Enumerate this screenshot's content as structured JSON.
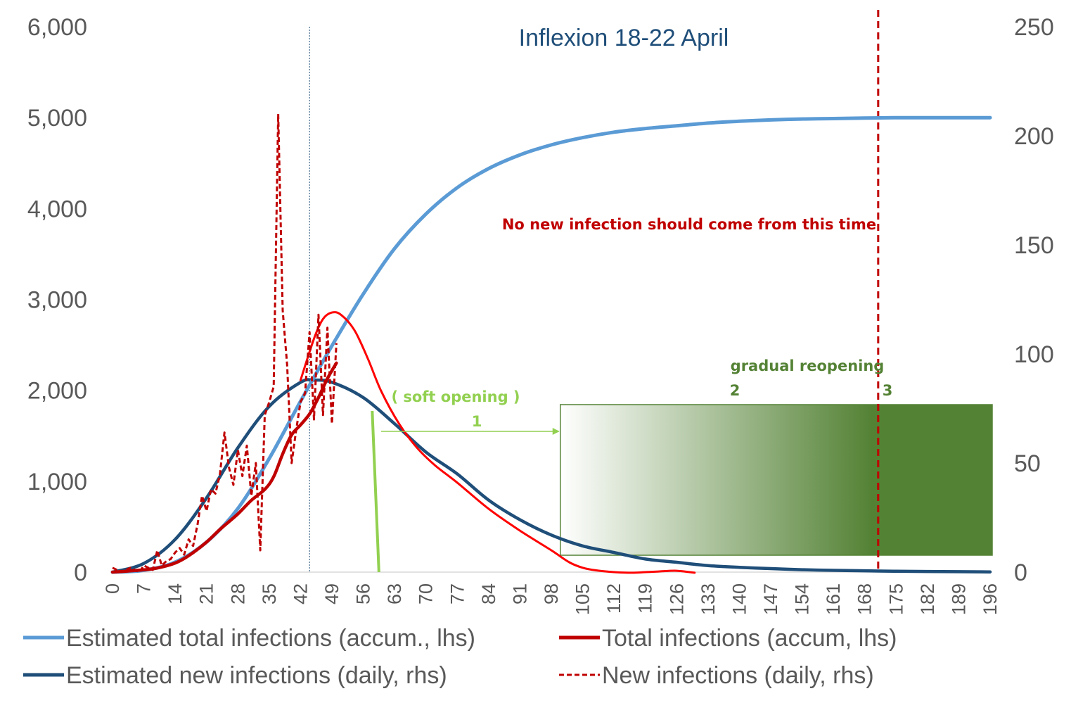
{
  "chart_data": {
    "type": "line",
    "title": "",
    "xlabel": "",
    "ylabel_left": "",
    "ylabel_right": "",
    "x_ticks": [
      0,
      7,
      14,
      21,
      28,
      35,
      42,
      49,
      56,
      63,
      70,
      77,
      84,
      91,
      98,
      105,
      112,
      119,
      126,
      133,
      140,
      147,
      154,
      161,
      168,
      175,
      182,
      189,
      196
    ],
    "x_range": [
      0,
      196
    ],
    "y_left": {
      "ticks": [
        0,
        1000,
        2000,
        3000,
        4000,
        5000,
        6000
      ],
      "tick_labels": [
        "0",
        "1,000",
        "2,000",
        "3,000",
        "4,000",
        "5,000",
        "6,000"
      ],
      "range": [
        0,
        6000
      ]
    },
    "y_right": {
      "ticks": [
        0,
        50,
        100,
        150,
        200,
        250
      ],
      "tick_labels": [
        "0",
        "50",
        "100",
        "150",
        "200",
        "250"
      ],
      "range": [
        0,
        250
      ]
    },
    "grid": false,
    "legend_position": "bottom",
    "series": [
      {
        "name": "Estimated total infections (accum., lhs)",
        "axis": "left",
        "color": "#5b9bd5",
        "style": "solid",
        "x": [
          0,
          7,
          14,
          21,
          28,
          35,
          42,
          49,
          56,
          63,
          70,
          77,
          84,
          91,
          98,
          105,
          112,
          119,
          126,
          133,
          140,
          147,
          154,
          161,
          168,
          175,
          182,
          189,
          196
        ],
        "y": [
          0,
          20,
          110,
          330,
          700,
          1250,
          1880,
          2490,
          3060,
          3560,
          3940,
          4230,
          4440,
          4590,
          4700,
          4780,
          4840,
          4880,
          4910,
          4940,
          4960,
          4975,
          4985,
          4990,
          4995,
          5000,
          5000,
          5000,
          5000
        ]
      },
      {
        "name": "Total infections (accum, lhs)",
        "axis": "left",
        "color": "#c00000",
        "style": "solid",
        "x": [
          0,
          3,
          7,
          10,
          14,
          17,
          21,
          24,
          28,
          31,
          34,
          36,
          38,
          40,
          42,
          44,
          46,
          48,
          50
        ],
        "y": [
          0,
          10,
          25,
          45,
          100,
          180,
          330,
          470,
          640,
          790,
          910,
          1050,
          1300,
          1510,
          1620,
          1740,
          1920,
          2130,
          2300
        ]
      },
      {
        "name": "Estimated new infections (daily, rhs)",
        "axis": "right",
        "color": "#1f4e79",
        "style": "solid",
        "x": [
          0,
          7,
          14,
          21,
          28,
          35,
          42,
          45,
          49,
          56,
          63,
          70,
          77,
          84,
          91,
          98,
          105,
          112,
          119,
          126,
          133,
          140,
          147,
          154,
          161,
          168,
          175,
          182,
          189,
          196
        ],
        "y": [
          0,
          4,
          15,
          34,
          57,
          76,
          87,
          88,
          87,
          80,
          68,
          55,
          45,
          33,
          24,
          17,
          12,
          9,
          6,
          4.5,
          3,
          2.2,
          1.6,
          1.1,
          0.8,
          0.6,
          0.4,
          0.3,
          0.2,
          0.1
        ]
      },
      {
        "name": "New infections (daily, rhs)",
        "axis": "right",
        "color": "#c00000",
        "style": "dashed",
        "x": [
          0,
          2,
          4,
          6,
          7,
          8,
          9,
          10,
          11,
          12,
          13,
          14,
          15,
          16,
          17,
          18,
          19,
          20,
          21,
          22,
          23,
          24,
          25,
          26,
          27,
          28,
          29,
          30,
          31,
          32,
          33,
          34,
          35,
          36,
          37,
          38,
          39,
          40,
          41,
          42,
          43,
          44,
          45,
          46,
          47,
          48,
          49,
          50
        ],
        "y": [
          2,
          0,
          2,
          0,
          3,
          2,
          1,
          10,
          3,
          5,
          6,
          9,
          11,
          8,
          15,
          12,
          22,
          35,
          28,
          38,
          36,
          45,
          64,
          48,
          40,
          56,
          44,
          58,
          35,
          50,
          10,
          72,
          78,
          85,
          210,
          120,
          95,
          50,
          65,
          78,
          82,
          110,
          70,
          118,
          72,
          112,
          68,
          105
        ]
      },
      {
        "name": "",
        "axis": "right",
        "color": "#ff0000",
        "style": "solid",
        "x": [
          42,
          45,
          47,
          49,
          51,
          54,
          57,
          60,
          64,
          68,
          72,
          77,
          84,
          91,
          98,
          102,
          105,
          108,
          112,
          116,
          119,
          122,
          126,
          130
        ],
        "y": [
          88,
          107,
          116,
          119,
          118,
          111,
          98,
          83,
          68,
          57,
          49,
          41,
          29,
          19,
          10,
          4.5,
          2,
          0.8,
          0,
          -0.3,
          0,
          0.3,
          0.6,
          -0.3
        ]
      }
    ],
    "vertical_lines": [
      {
        "x": 44,
        "color": "#1f4e79",
        "style": "dotted"
      },
      {
        "x": 171,
        "color": "#c00000",
        "style": "dashed"
      }
    ],
    "annotations": {
      "inflexion": "Inflexion 18-22 April",
      "no_new_infection": "No new infection should come from this time",
      "soft_opening": "( soft opening )",
      "phase_1": "1",
      "gradual_reopening": "gradual reopening",
      "phase_2": "2",
      "phase_3": "3"
    },
    "colors": {
      "soft_opening": "#92d050",
      "reopening_green": "#548235",
      "reopening_box_start": "#ffffff",
      "reopening_box_end": "#548235"
    }
  }
}
